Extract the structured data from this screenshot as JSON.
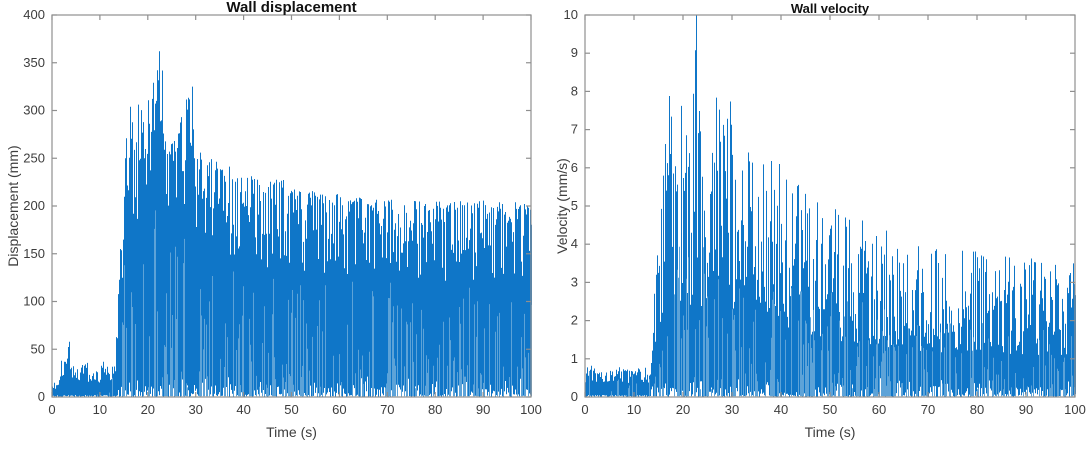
{
  "figure": {
    "background": "#ffffff"
  },
  "chart_data": [
    {
      "type": "line",
      "title": "Wall displacement",
      "xlabel": "Time (s)",
      "ylabel": "Displacement (mm)",
      "xlim": [
        0,
        100
      ],
      "ylim": [
        0,
        400
      ],
      "xticks": [
        0,
        10,
        20,
        30,
        40,
        50,
        60,
        70,
        80,
        90,
        100
      ],
      "yticks": [
        0,
        50,
        100,
        150,
        200,
        250,
        300,
        350,
        400
      ],
      "grid": false,
      "legend": null,
      "line_color": "#0f76c8",
      "line_color_light": "#5da3d8",
      "axis_color": "#8f8f8f",
      "tick_label_color": "#3d3d3d",
      "title_color": "#111111",
      "seed": 42,
      "series_desc": "dense oscillatory wall displacement signal; quiet 0-13 s, strong shaking onset ~13.5 s, peak 362 mm at ~22 s, decaying to ~205 mm sustained band",
      "upper_envelope": [
        [
          0,
          14
        ],
        [
          1,
          22
        ],
        [
          2,
          42
        ],
        [
          3,
          58
        ],
        [
          3.5,
          60
        ],
        [
          4,
          48
        ],
        [
          5,
          30
        ],
        [
          6,
          34
        ],
        [
          7,
          40
        ],
        [
          8,
          30
        ],
        [
          9,
          36
        ],
        [
          10,
          32
        ],
        [
          11,
          40
        ],
        [
          12,
          34
        ],
        [
          13,
          45
        ],
        [
          13.5,
          70
        ],
        [
          14,
          140
        ],
        [
          15,
          235
        ],
        [
          15.9,
          315
        ],
        [
          17,
          285
        ],
        [
          18,
          312
        ],
        [
          19,
          298
        ],
        [
          20,
          322
        ],
        [
          21,
          342
        ],
        [
          22,
          355
        ],
        [
          22.3,
          362
        ],
        [
          23,
          345
        ],
        [
          24,
          305
        ],
        [
          25,
          282
        ],
        [
          26,
          268
        ],
        [
          27,
          295
        ],
        [
          28,
          312
        ],
        [
          29,
          318
        ],
        [
          30,
          292
        ],
        [
          31,
          252
        ],
        [
          32,
          232
        ],
        [
          33,
          262
        ],
        [
          34,
          248
        ],
        [
          35,
          246
        ],
        [
          36,
          230
        ],
        [
          37,
          250
        ],
        [
          38,
          240
        ],
        [
          40,
          226
        ],
        [
          42,
          236
        ],
        [
          44,
          220
        ],
        [
          46,
          228
        ],
        [
          48,
          230
        ],
        [
          50,
          220
        ],
        [
          52,
          214
        ],
        [
          55,
          217
        ],
        [
          58,
          211
        ],
        [
          60,
          213
        ],
        [
          62,
          207
        ],
        [
          65,
          211
        ],
        [
          68,
          206
        ],
        [
          70,
          209
        ],
        [
          72,
          204
        ],
        [
          75,
          207
        ],
        [
          78,
          203
        ],
        [
          80,
          207
        ],
        [
          82,
          202
        ],
        [
          85,
          206
        ],
        [
          88,
          203
        ],
        [
          90,
          207
        ],
        [
          92,
          203
        ],
        [
          95,
          205
        ],
        [
          98,
          203
        ],
        [
          100,
          207
        ]
      ],
      "spikes": [
        [
          22.3,
          362
        ],
        [
          29.2,
          325
        ]
      ],
      "texture": {
        "onset": 13.4,
        "pre_top_min": 0.45,
        "top_min": 0.6,
        "top_pow": 1.8,
        "top_skew": "high",
        "full_spike_prob": 0.05,
        "bot_max": 22,
        "streak_prob": 0.4,
        "streak_hmax_frac": 0.55
      }
    },
    {
      "type": "line",
      "title": "Wall velocity",
      "xlabel": "Time (s)",
      "ylabel": "Velocity (mm/s)",
      "xlim": [
        0,
        100
      ],
      "ylim": [
        0,
        10
      ],
      "xticks": [
        0,
        10,
        20,
        30,
        40,
        50,
        60,
        70,
        80,
        90,
        100
      ],
      "yticks": [
        0,
        1,
        2,
        3,
        4,
        5,
        6,
        7,
        8,
        9,
        10
      ],
      "grid": false,
      "legend": null,
      "line_color": "#0f76c8",
      "line_color_light": "#5da3d8",
      "axis_color": "#8f8f8f",
      "tick_label_color": "#3d3d3d",
      "title_color": "#111111",
      "seed": 7,
      "series_desc": "dense oscillatory wall velocity signal; quiet 0-13 s (<1 mm/s), onset ~13.5 s, peaks ~8 mm/s with single spike to 10 mm/s at ~23 s, decaying to ~3.7 mm/s band",
      "upper_envelope": [
        [
          0,
          0.85
        ],
        [
          1,
          0.95
        ],
        [
          2,
          0.75
        ],
        [
          3,
          0.85
        ],
        [
          4,
          0.7
        ],
        [
          5,
          0.78
        ],
        [
          6,
          0.7
        ],
        [
          7,
          0.82
        ],
        [
          8,
          0.72
        ],
        [
          9,
          0.78
        ],
        [
          10,
          0.7
        ],
        [
          11,
          0.8
        ],
        [
          12,
          0.75
        ],
        [
          13,
          0.85
        ],
        [
          13.5,
          1.4
        ],
        [
          14,
          2.6
        ],
        [
          15,
          4.2
        ],
        [
          16,
          6.2
        ],
        [
          17,
          8.2
        ],
        [
          18,
          7.3
        ],
        [
          19,
          7.7
        ],
        [
          20,
          8.0
        ],
        [
          21,
          7.4
        ],
        [
          22,
          7.8
        ],
        [
          22.6,
          10
        ],
        [
          23,
          7.8
        ],
        [
          24,
          7.6
        ],
        [
          25,
          7.2
        ],
        [
          26,
          7.6
        ],
        [
          27,
          8.2
        ],
        [
          28,
          7.4
        ],
        [
          29,
          7.9
        ],
        [
          30,
          7.9
        ],
        [
          31,
          6.9
        ],
        [
          32,
          7.0
        ],
        [
          33,
          6.5
        ],
        [
          34,
          6.2
        ],
        [
          35,
          6.7
        ],
        [
          36,
          6.0
        ],
        [
          37,
          6.3
        ],
        [
          38,
          6.4
        ],
        [
          39,
          5.8
        ],
        [
          40,
          6.4
        ],
        [
          41,
          5.7
        ],
        [
          42,
          5.9
        ],
        [
          43,
          5.5
        ],
        [
          44,
          5.7
        ],
        [
          45,
          5.3
        ],
        [
          46,
          5.5
        ],
        [
          47,
          5.1
        ],
        [
          48,
          5.3
        ],
        [
          49,
          4.9
        ],
        [
          50,
          5.1
        ],
        [
          52,
          4.8
        ],
        [
          54,
          4.7
        ],
        [
          56,
          4.7
        ],
        [
          58,
          4.5
        ],
        [
          60,
          4.5
        ],
        [
          62,
          4.3
        ],
        [
          64,
          4.3
        ],
        [
          66,
          4.1
        ],
        [
          68,
          4.0
        ],
        [
          70,
          4.1
        ],
        [
          72,
          3.9
        ],
        [
          75,
          3.9
        ],
        [
          78,
          3.8
        ],
        [
          80,
          3.9
        ],
        [
          82,
          3.7
        ],
        [
          85,
          3.8
        ],
        [
          88,
          3.6
        ],
        [
          90,
          3.7
        ],
        [
          92,
          3.6
        ],
        [
          95,
          3.7
        ],
        [
          98,
          3.6
        ],
        [
          100,
          3.7
        ]
      ],
      "spikes": [
        [
          22.6,
          10
        ]
      ],
      "texture": {
        "onset": 13.4,
        "pre_top_min": 0.45,
        "top_min": 0.3,
        "top_pow": 1.25,
        "top_skew": "low",
        "full_spike_prob": 0.06,
        "bot_max": 0.5,
        "streak_prob": 0.45,
        "streak_hmax_frac": 0.5
      }
    }
  ]
}
